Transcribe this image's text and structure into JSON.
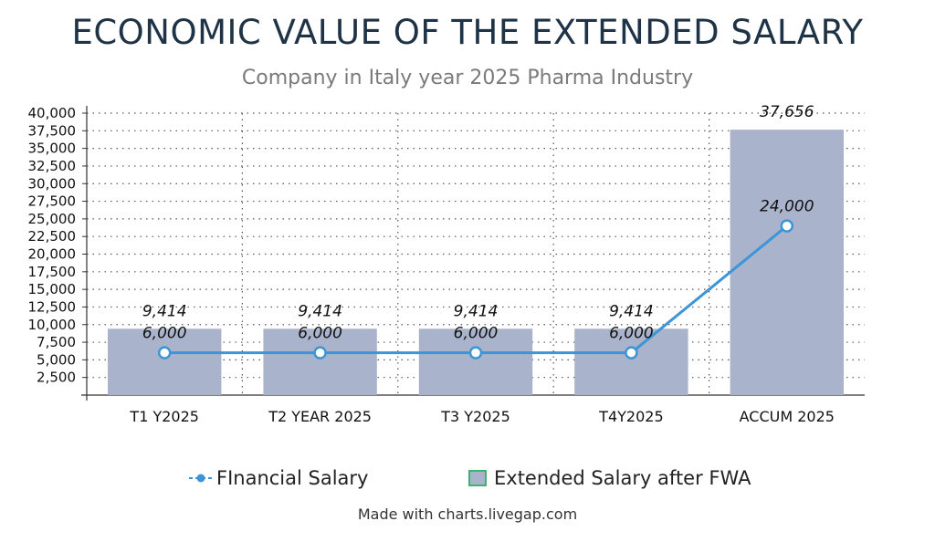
{
  "chart_data": {
    "type": "bar",
    "title": "ECONOMIC VALUE OF THE EXTENDED SALARY",
    "subtitle": "Company in Italy year 2025 Pharma Industry",
    "categories": [
      "T1 Y2025",
      "T2 YEAR 2025",
      "T3 Y2025",
      "T4Y2025",
      "ACCUM 2025"
    ],
    "series": [
      {
        "name": "Extended Salary after FWA",
        "type": "bar",
        "values": [
          9414,
          9414,
          9414,
          9414,
          37656
        ],
        "labels": [
          "9,414",
          "9,414",
          "9,414",
          "9,414",
          "37,656"
        ],
        "color": "#aab3cc"
      },
      {
        "name": "FInancial Salary",
        "type": "line",
        "values": [
          6000,
          6000,
          6000,
          6000,
          24000
        ],
        "labels": [
          "6,000",
          "6,000",
          "6,000",
          "6,000",
          "24,000"
        ],
        "color": "#3b95d6"
      }
    ],
    "yticks": [
      2500,
      5000,
      7500,
      10000,
      12500,
      15000,
      17500,
      20000,
      22500,
      25000,
      27500,
      30000,
      32500,
      35000,
      37500,
      40000
    ],
    "ytick_labels": [
      "2,500",
      "5,000",
      "7,500",
      "10,000",
      "12,500",
      "15,000",
      "17,500",
      "20,000",
      "22,500",
      "25,000",
      "27,500",
      "30,000",
      "32,500",
      "35,000",
      "37,500",
      "40,000"
    ],
    "ylim": [
      0,
      40000
    ],
    "grid": true,
    "legend_position": "bottom"
  },
  "legend": {
    "line_label": "FInancial Salary",
    "bar_label": "Extended Salary after FWA",
    "bar_border_color": "#3cb371"
  },
  "footer": "Made with charts.livegap.com"
}
